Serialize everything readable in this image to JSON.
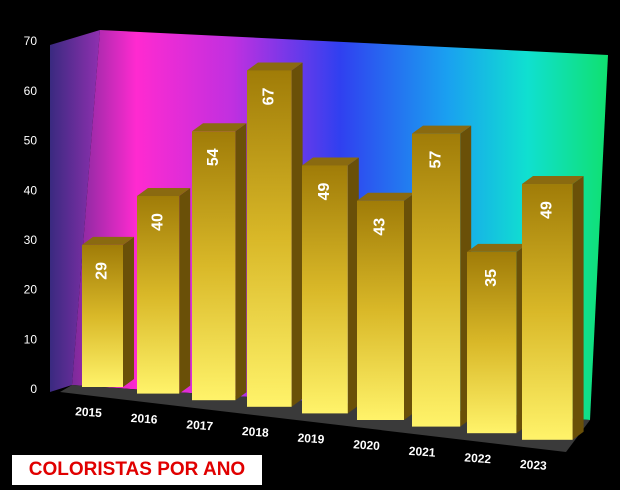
{
  "chart_data": {
    "type": "bar3d",
    "title": "COLORISTAS POR ANO",
    "categories": [
      "2015",
      "2016",
      "2017",
      "2018",
      "2019",
      "2020",
      "2021",
      "2022",
      "2023"
    ],
    "values": [
      29,
      40,
      54,
      67,
      49,
      43,
      57,
      35,
      49
    ],
    "color": "#d9b828",
    "ylim": [
      0,
      70
    ],
    "yticks": [
      0,
      10,
      20,
      30,
      40,
      50,
      60,
      70
    ],
    "grid": false
  }
}
